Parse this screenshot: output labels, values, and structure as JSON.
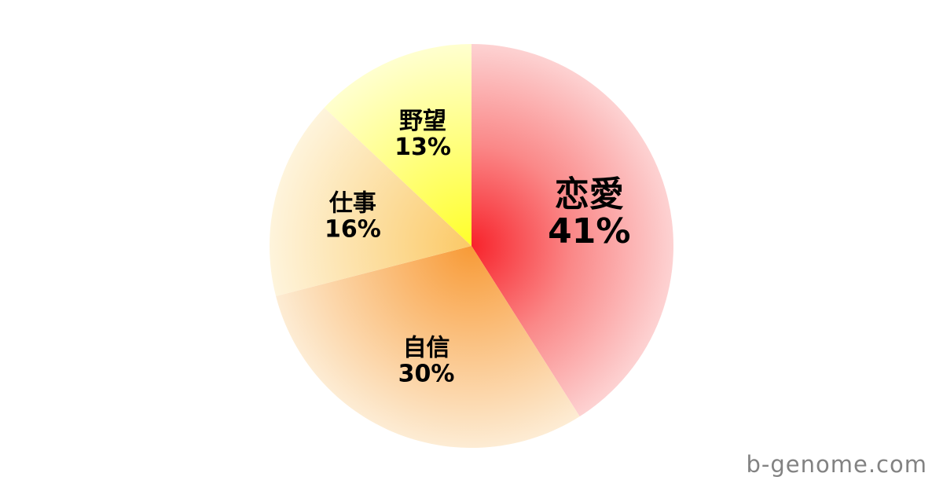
{
  "page": {
    "background": "#ffffff"
  },
  "chart_data": {
    "type": "pie",
    "title": "",
    "categories": [
      "恋愛",
      "自信",
      "仕事",
      "野望"
    ],
    "values": [
      41,
      30,
      16,
      13
    ],
    "unit": "%",
    "start_angle_deg": 0,
    "direction": "clockwise",
    "legend": "none",
    "label_style": "inside-two-line",
    "label_color": "#000000",
    "slices": [
      {
        "name": "恋愛",
        "value": 41,
        "pct_label": "41%",
        "color_center": "#f8232b",
        "color_mid": "#fa8888",
        "color_edge": "#fdd2d2",
        "label_size": 44
      },
      {
        "name": "自信",
        "value": 30,
        "pct_label": "30%",
        "color_center": "#f89a36",
        "color_edge": "#fdecd4",
        "label_size": 30
      },
      {
        "name": "仕事",
        "value": 16,
        "pct_label": "16%",
        "color_center": "#fbc966",
        "color_edge": "#fef4dc",
        "label_size": 30
      },
      {
        "name": "野望",
        "value": 13,
        "pct_label": "13%",
        "color_center": "#ffff2a",
        "color_edge": "#ffffcf",
        "label_size": 30
      }
    ]
  },
  "watermark": {
    "text": "b-genome.com",
    "color": "#828282"
  }
}
